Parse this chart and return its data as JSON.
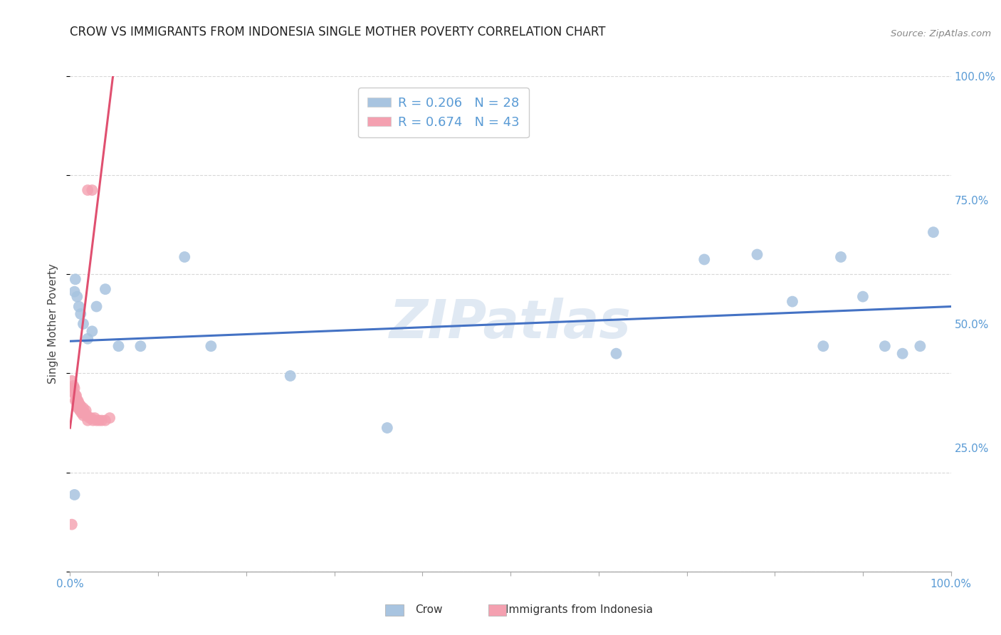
{
  "title": "CROW VS IMMIGRANTS FROM INDONESIA SINGLE MOTHER POVERTY CORRELATION CHART",
  "source": "Source: ZipAtlas.com",
  "ylabel": "Single Mother Poverty",
  "xlim": [
    0,
    1.0
  ],
  "ylim": [
    0,
    1.0
  ],
  "watermark": "ZIPatlas",
  "legend_entries": [
    {
      "label": "R = 0.206   N = 28",
      "color": "#a8c4e0"
    },
    {
      "label": "R = 0.674   N = 43",
      "color": "#f4a0b0"
    }
  ],
  "crow_scatter_x": [
    0.005,
    0.006,
    0.008,
    0.01,
    0.012,
    0.015,
    0.02,
    0.025,
    0.03,
    0.04,
    0.055,
    0.08,
    0.13,
    0.16,
    0.25,
    0.36,
    0.62,
    0.72,
    0.78,
    0.82,
    0.855,
    0.875,
    0.9,
    0.925,
    0.945,
    0.965,
    0.98,
    0.005
  ],
  "crow_scatter_y": [
    0.565,
    0.59,
    0.555,
    0.535,
    0.52,
    0.5,
    0.47,
    0.485,
    0.535,
    0.57,
    0.455,
    0.455,
    0.635,
    0.455,
    0.395,
    0.29,
    0.44,
    0.63,
    0.64,
    0.545,
    0.455,
    0.635,
    0.555,
    0.455,
    0.44,
    0.455,
    0.685,
    0.155
  ],
  "crow_line_x": [
    0.0,
    1.0
  ],
  "crow_line_y": [
    0.465,
    0.535
  ],
  "indonesia_scatter_x": [
    0.002,
    0.002,
    0.004,
    0.005,
    0.005,
    0.006,
    0.006,
    0.007,
    0.007,
    0.008,
    0.008,
    0.009,
    0.009,
    0.009,
    0.01,
    0.01,
    0.011,
    0.011,
    0.012,
    0.012,
    0.013,
    0.013,
    0.014,
    0.014,
    0.015,
    0.015,
    0.016,
    0.017,
    0.018,
    0.019,
    0.02,
    0.022,
    0.024,
    0.026,
    0.028,
    0.03,
    0.033,
    0.036,
    0.04,
    0.045,
    0.02,
    0.025,
    0.002
  ],
  "indonesia_scatter_y": [
    0.37,
    0.385,
    0.375,
    0.37,
    0.36,
    0.345,
    0.355,
    0.345,
    0.355,
    0.335,
    0.345,
    0.33,
    0.34,
    0.345,
    0.33,
    0.34,
    0.335,
    0.325,
    0.335,
    0.33,
    0.325,
    0.32,
    0.325,
    0.32,
    0.33,
    0.315,
    0.32,
    0.32,
    0.325,
    0.315,
    0.305,
    0.31,
    0.31,
    0.305,
    0.31,
    0.305,
    0.305,
    0.305,
    0.305,
    0.31,
    0.77,
    0.77,
    0.095
  ],
  "indonesia_line_x": [
    0.0,
    0.05
  ],
  "indonesia_line_y": [
    0.29,
    1.02
  ],
  "background_color": "#ffffff",
  "scatter_size": 130,
  "crow_color": "#a8c4e0",
  "crow_line_color": "#4472c4",
  "indonesia_color": "#f4a0b0",
  "indonesia_line_color": "#e05070",
  "grid_color": "#d8d8d8"
}
